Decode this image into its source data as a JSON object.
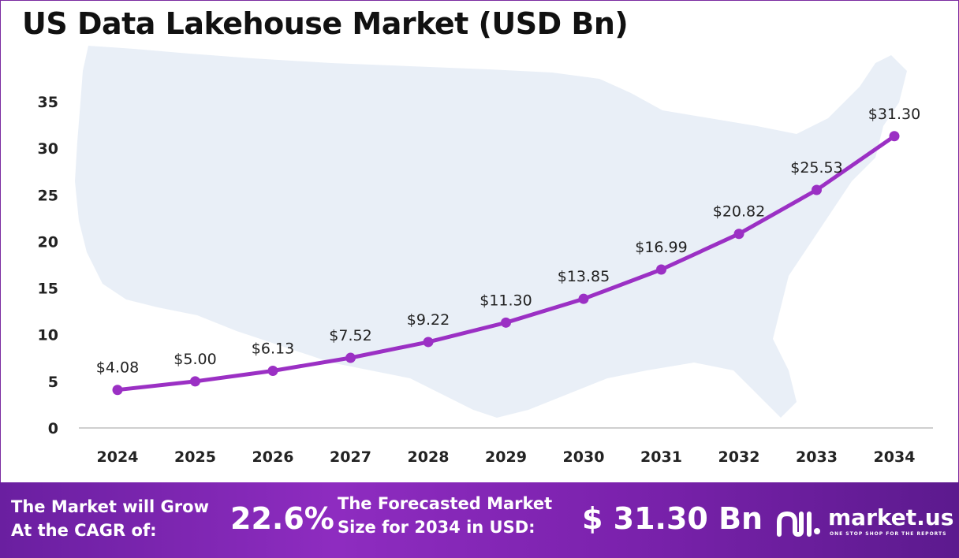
{
  "chart_data": {
    "type": "line",
    "title": "US Data Lakehouse Market (USD Bn)",
    "xlabel": "",
    "ylabel": "",
    "categories": [
      "2024",
      "2025",
      "2026",
      "2027",
      "2028",
      "2029",
      "2030",
      "2031",
      "2032",
      "2033",
      "2034"
    ],
    "values": [
      4.08,
      5.0,
      6.13,
      7.52,
      9.22,
      11.3,
      13.85,
      16.99,
      20.82,
      25.53,
      31.3
    ],
    "data_labels": [
      "$4.08",
      "$5.00",
      "$6.13",
      "$7.52",
      "$9.22",
      "$11.30",
      "$13.85",
      "$16.99",
      "$20.82",
      "$25.53",
      "$31.30"
    ],
    "yticks": [
      0,
      5,
      10,
      15,
      20,
      25,
      30,
      35
    ],
    "ylim": [
      0,
      35
    ],
    "grid": false,
    "legend": "none",
    "line_color": "#9b30c4",
    "background_shape": "us-map"
  },
  "footer": {
    "cagr_label_line1": "The Market will Grow",
    "cagr_label_line2": "At the CAGR of:",
    "cagr_value": "22.6%",
    "forecast_label_line1": "The Forecasted Market",
    "forecast_label_line2": "Size for 2034 in USD:",
    "forecast_value": "$ 31.30 Bn",
    "brand_name": "market.us",
    "brand_tagline": "ONE STOP SHOP FOR THE REPORTS",
    "brand_icon": "market-us-logo-icon"
  },
  "colors": {
    "line": "#9b30c4",
    "footer_bg": "#7b22ad",
    "map": "#e8eef6",
    "axis": "#222222"
  }
}
